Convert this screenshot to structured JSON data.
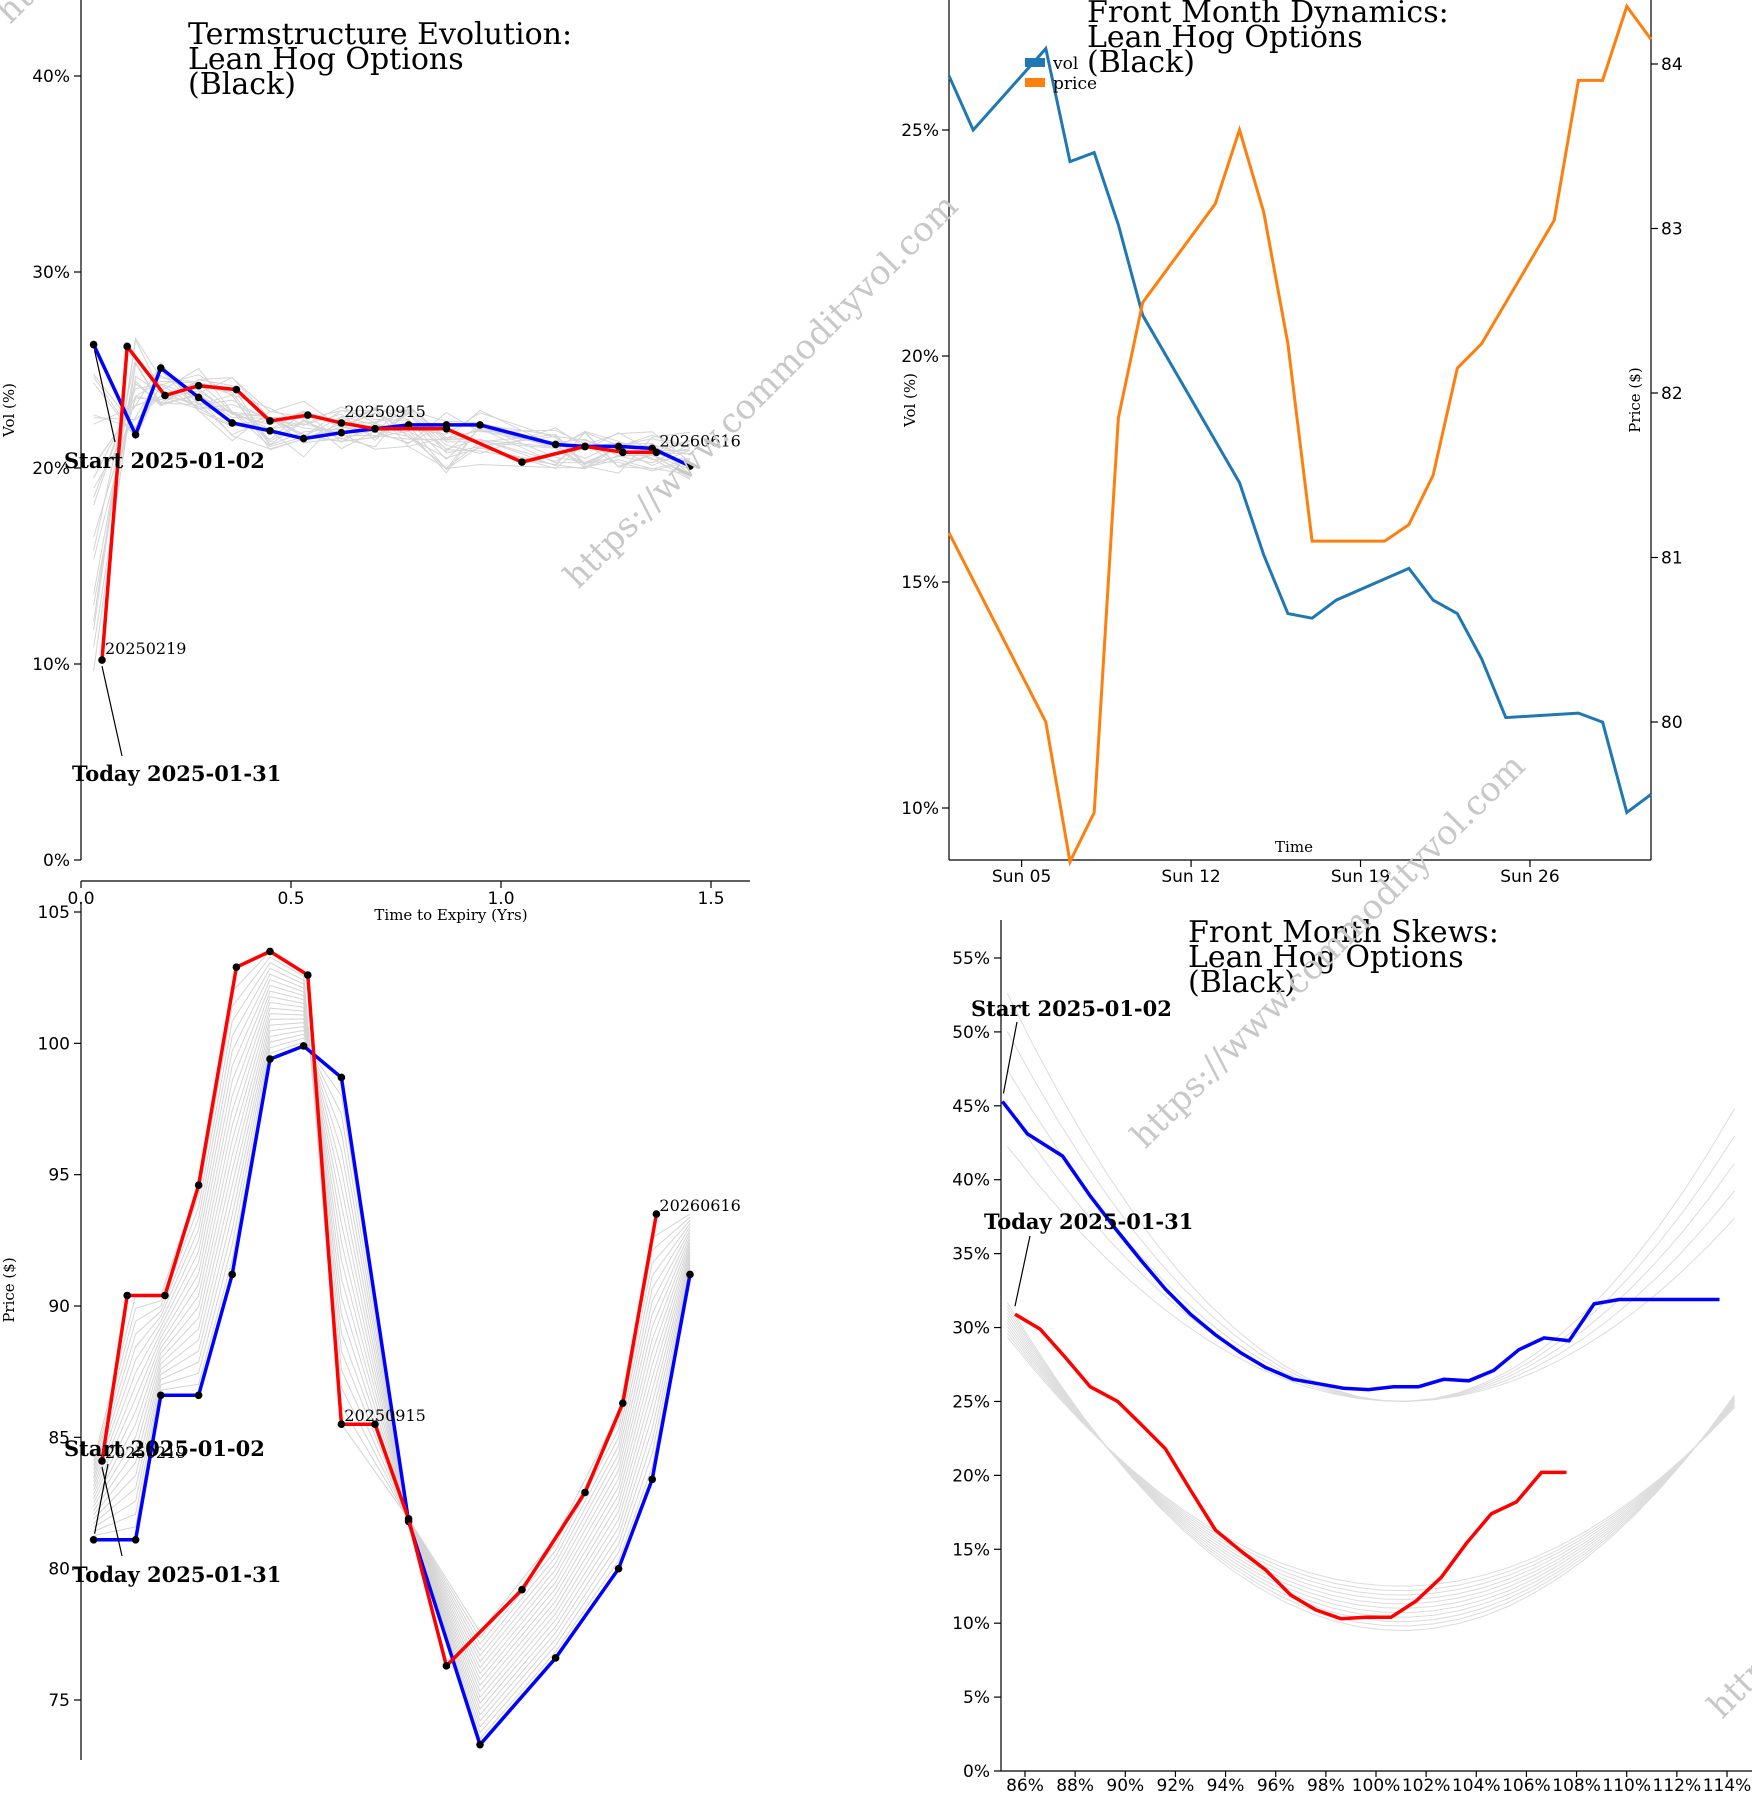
{
  "watermark": "https://www.commodityvol.com",
  "chart_data": [
    {
      "id": "termstructure",
      "type": "line",
      "title": [
        "Termstructure Evolution:",
        "Lean Hog Options",
        "(Black)"
      ],
      "xlabel": "Time to Expiry (Yrs)",
      "ylabel": "Vol (%)",
      "xlim": [
        0,
        1.6
      ],
      "ylim": [
        0,
        44
      ],
      "xticks": [
        0.0,
        0.5,
        1.0,
        1.5
      ],
      "xtick_labels": [
        "0.0",
        "0.5",
        "1.0",
        "1.5"
      ],
      "yticks": [
        0,
        10,
        20,
        30,
        40
      ],
      "ytick_labels": [
        "0%",
        "10%",
        "20%",
        "30%",
        "40%"
      ],
      "series": [
        {
          "name": "Start 2025-01-02",
          "color": "#0000ff",
          "x": [
            0.03,
            0.13,
            0.19,
            0.28,
            0.36,
            0.45,
            0.53,
            0.62,
            0.7,
            0.78,
            0.87,
            0.95,
            1.13,
            1.2,
            1.28,
            1.36,
            1.45
          ],
          "y": [
            26.3,
            21.7,
            25.1,
            23.6,
            22.3,
            21.9,
            21.5,
            21.8,
            22.0,
            22.2,
            22.2,
            22.2,
            21.2,
            21.1,
            21.1,
            21.0,
            20.1
          ]
        },
        {
          "name": "Today 2025-01-31",
          "color": "#ff0000",
          "x": [
            0.05,
            0.11,
            0.2,
            0.28,
            0.37,
            0.45,
            0.54,
            0.62,
            0.7,
            0.87,
            1.05,
            1.2,
            1.29,
            1.37
          ],
          "y": [
            10.2,
            26.2,
            23.7,
            24.2,
            24.0,
            22.4,
            22.7,
            22.3,
            22.0,
            22.0,
            20.3,
            21.1,
            20.8,
            20.8
          ]
        }
      ],
      "labels": [
        {
          "text": "20250219",
          "x": 0.05,
          "y": 10.2
        },
        {
          "text": "20250915",
          "x": 0.62,
          "y": 22.3
        },
        {
          "text": "20260616",
          "x": 1.37,
          "y": 20.8
        }
      ],
      "annotations": [
        {
          "text": "Start 2025-01-02",
          "x": 0.03,
          "y": 26.3
        },
        {
          "text": "Today 2025-01-31",
          "x": 0.05,
          "y": 10.2
        }
      ]
    },
    {
      "id": "front-month-dynamics",
      "type": "line",
      "title": [
        "Front Month Dynamics:",
        "Lean Hog Options",
        "(Black)"
      ],
      "xlabel": "Time",
      "ylabel": "Vol (%)",
      "y2label": "Price ($)",
      "xlim": [
        2,
        31
      ],
      "ylim": [
        9,
        28
      ],
      "y2lim": [
        79.15,
        84.35
      ],
      "xticks": [
        5,
        12,
        19,
        26
      ],
      "xtick_labels": [
        "Sun 05",
        "Sun 12",
        "Sun 19",
        "Sun 26"
      ],
      "yticks": [
        10,
        15,
        20,
        25
      ],
      "ytick_labels": [
        "10%",
        "15%",
        "20%",
        "25%"
      ],
      "y2ticks": [
        80,
        81,
        82,
        83,
        84
      ],
      "y2tick_labels": [
        "80",
        "81",
        "82",
        "83",
        "84"
      ],
      "legend": [
        "vol",
        "price"
      ],
      "series": [
        {
          "name": "vol",
          "color": "#1f77b4",
          "axis": "left",
          "x": [
            2,
            3,
            6,
            7,
            8,
            9,
            10,
            14,
            15,
            16,
            17,
            18,
            21,
            22,
            23,
            24,
            25,
            28,
            29,
            30,
            31
          ],
          "y": [
            26.2,
            25.0,
            26.8,
            24.3,
            24.5,
            22.9,
            20.9,
            17.2,
            15.6,
            14.3,
            14.2,
            14.6,
            15.3,
            14.6,
            14.3,
            13.3,
            12.0,
            12.1,
            11.9,
            9.9,
            10.3
          ]
        },
        {
          "name": "price",
          "color": "#ff7f0e",
          "axis": "right",
          "x": [
            2,
            6,
            7,
            8,
            9,
            10,
            13,
            14,
            15,
            16,
            17,
            20,
            21,
            22,
            23,
            24,
            27,
            28,
            29,
            30,
            31
          ],
          "y": [
            81.15,
            80.0,
            79.15,
            79.45,
            81.85,
            82.55,
            83.15,
            83.6,
            83.1,
            82.3,
            81.1,
            81.1,
            81.2,
            81.5,
            82.15,
            82.3,
            83.05,
            83.9,
            83.9,
            84.35,
            84.15
          ]
        }
      ]
    },
    {
      "id": "price-termstructure",
      "type": "line",
      "title": [],
      "xlabel": "",
      "ylabel": "Price ($)",
      "xlim": [
        0,
        1.6
      ],
      "ylim": [
        72.8,
        105.3
      ],
      "yticks": [
        75,
        80,
        85,
        90,
        95,
        100,
        105
      ],
      "ytick_labels": [
        "75",
        "80",
        "85",
        "90",
        "95",
        "100",
        "105"
      ],
      "series": [
        {
          "name": "Start 2025-01-02",
          "color": "#0000ff",
          "x": [
            0.03,
            0.13,
            0.19,
            0.28,
            0.36,
            0.45,
            0.53,
            0.62,
            0.78,
            0.95,
            1.13,
            1.28,
            1.36,
            1.45
          ],
          "y": [
            81.1,
            81.1,
            86.6,
            86.6,
            91.2,
            99.4,
            99.9,
            98.7,
            81.8,
            73.3,
            76.6,
            80.0,
            83.4,
            91.2
          ]
        },
        {
          "name": "Today 2025-01-31",
          "color": "#ff0000",
          "x": [
            0.05,
            0.11,
            0.2,
            0.28,
            0.37,
            0.45,
            0.54,
            0.62,
            0.7,
            0.78,
            0.87,
            1.05,
            1.2,
            1.29,
            1.37
          ],
          "y": [
            84.1,
            90.4,
            90.4,
            94.6,
            102.9,
            103.5,
            102.6,
            85.5,
            85.5,
            81.9,
            76.3,
            79.2,
            82.9,
            86.3,
            93.5
          ]
        }
      ],
      "labels": [
        {
          "text": "20250219",
          "x": 0.05,
          "y": 84.1
        },
        {
          "text": "20250915",
          "x": 0.62,
          "y": 85.5
        },
        {
          "text": "20260616",
          "x": 1.37,
          "y": 93.5
        }
      ],
      "annotations": [
        {
          "text": "Start 2025-01-02",
          "x": 0.03,
          "y": 81.1
        },
        {
          "text": "Today 2025-01-31",
          "x": 0.05,
          "y": 84.1
        }
      ]
    },
    {
      "id": "front-month-skews",
      "type": "line",
      "title": [
        "Front Month Skews:",
        "Lean Hog Options",
        "(Black)"
      ],
      "xlabel": "",
      "ylabel": "",
      "xlim": [
        85,
        115.2
      ],
      "ylim": [
        0,
        57
      ],
      "xticks": [
        86,
        88,
        90,
        92,
        94,
        96,
        98,
        100,
        102,
        104,
        106,
        108,
        110,
        112,
        114
      ],
      "xtick_labels": [
        "86%",
        "88%",
        "90%",
        "92%",
        "94%",
        "96%",
        "98%",
        "100%",
        "102%",
        "104%",
        "106%",
        "108%",
        "110%",
        "112%",
        "114%"
      ],
      "yticks": [
        0,
        5,
        10,
        15,
        20,
        25,
        30,
        35,
        40,
        45,
        50,
        55
      ],
      "ytick_labels": [
        "0%",
        "5%",
        "10%",
        "15%",
        "20%",
        "25%",
        "30%",
        "35%",
        "40%",
        "45%",
        "50%",
        "55%"
      ],
      "series": [
        {
          "name": "Start 2025-01-02",
          "color": "#0000ff",
          "x": [
            85.1,
            86.1,
            87.5,
            88.6,
            89.6,
            90.6,
            91.6,
            92.6,
            93.6,
            94.6,
            95.6,
            96.7,
            97.7,
            98.7,
            99.7,
            100.7,
            101.7,
            102.7,
            103.7,
            104.7,
            105.7,
            106.7,
            107.7,
            108.7,
            109.7,
            110.7,
            111.7,
            112.7,
            113.7
          ],
          "y": [
            45.3,
            43.1,
            41.6,
            38.9,
            36.7,
            34.6,
            32.6,
            30.9,
            29.5,
            28.3,
            27.3,
            26.5,
            26.2,
            25.9,
            25.8,
            26.0,
            26.0,
            26.5,
            26.4,
            27.1,
            28.5,
            29.3,
            29.1,
            31.6,
            31.9,
            31.9,
            31.9,
            31.9,
            31.9
          ]
        },
        {
          "name": "Today 2025-01-31",
          "color": "#ff0000",
          "x": [
            85.6,
            86.6,
            87.6,
            88.6,
            89.7,
            90.6,
            91.6,
            92.6,
            93.6,
            94.6,
            95.6,
            96.6,
            97.6,
            98.6,
            99.6,
            100.6,
            101.6,
            102.6,
            103.6,
            104.6,
            105.6,
            106.6,
            107.6
          ],
          "y": [
            30.9,
            29.9,
            28.0,
            26.0,
            25.0,
            23.5,
            21.8,
            19.0,
            16.3,
            14.9,
            13.6,
            11.9,
            10.9,
            10.3,
            10.4,
            10.4,
            11.5,
            13.1,
            15.4,
            17.4,
            18.2,
            20.2,
            20.2
          ]
        }
      ],
      "annotations": [
        {
          "text": "Start 2025-01-02",
          "x": 85.1,
          "y": 45.3
        },
        {
          "text": "Today 2025-01-31",
          "x": 85.6,
          "y": 30.9
        }
      ]
    }
  ]
}
